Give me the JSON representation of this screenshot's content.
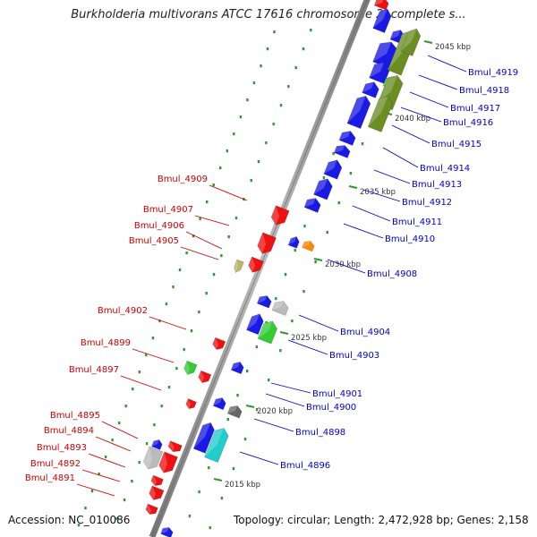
{
  "title": "Burkholderia multivorans ATCC 17616 chromosome 2, complete s...",
  "footer": {
    "accession": "Accession: NC_010086",
    "summary": "Topology: circular; Length: 2,472,928 bp; Genes: 2,158"
  },
  "colors": {
    "backbone": "#8c8c8c",
    "forward_label": "#0000cc",
    "reverse_label": "#cc0000",
    "tick": "#2e9a2e",
    "blue": "#1a1ae6",
    "red": "#ee1111",
    "olive": "#6b8e23",
    "green": "#33cc33",
    "gray": "#bbbbbb",
    "darkgray": "#666666",
    "cyan": "#22cccc",
    "orange": "#ff8800",
    "khaki": "#bdb76b"
  },
  "scale_labels": [
    "2045 kbp",
    "2040 kbp",
    "2035 kbp",
    "2030 kbp",
    "2025 kbp",
    "2020 kbp",
    "2015 kbp"
  ],
  "forward_genes": [
    "Bmul_4919",
    "Bmul_4918",
    "Bmul_4917",
    "Bmul_4916",
    "Bmul_4915",
    "Bmul_4914",
    "Bmul_4913",
    "Bmul_4912",
    "Bmul_4911",
    "Bmul_4910",
    "Bmul_4908",
    "Bmul_4904",
    "Bmul_4903",
    "Bmul_4901",
    "Bmul_4900",
    "Bmul_4898",
    "Bmul_4896"
  ],
  "reverse_genes": [
    "Bmul_4909",
    "Bmul_4907",
    "Bmul_4906",
    "Bmul_4905",
    "Bmul_4902",
    "Bmul_4899",
    "Bmul_4897",
    "Bmul_4895",
    "Bmul_4894",
    "Bmul_4893",
    "Bmul_4892",
    "Bmul_4891"
  ]
}
